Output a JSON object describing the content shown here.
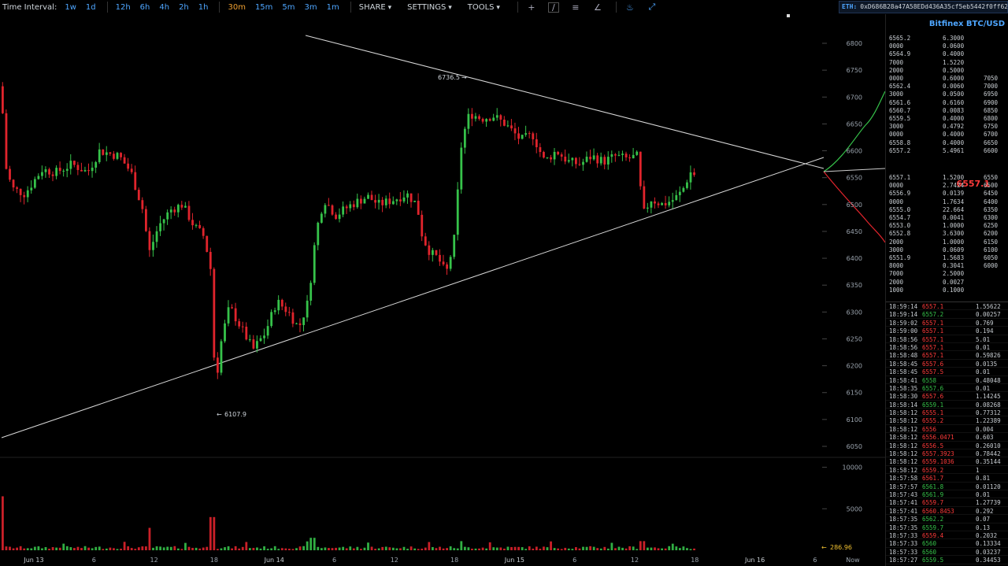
{
  "toolbar": {
    "time_interval_label": "Time Interval:",
    "intervals": [
      "1w",
      "1d",
      "12h",
      "6h",
      "4h",
      "2h",
      "1h",
      "30m",
      "15m",
      "5m",
      "3m",
      "1m"
    ],
    "active_interval": "30m",
    "share_label": "SHARE",
    "settings_label": "SETTINGS",
    "tools_label": "TOOLS",
    "eth_label": "ETH:",
    "eth_address": "0xD686B28a47A58EDd436A35cf5eb5442f0ff62"
  },
  "panel": {
    "pair_title": "Bitfinex BTC/USD",
    "last_price": "6557.1",
    "asks": [
      [
        "6565.2",
        "6.3000",
        ""
      ],
      [
        "0000",
        "0.0600",
        ""
      ],
      [
        "6564.9",
        "0.4000",
        ""
      ],
      [
        "7000",
        "1.5220",
        ""
      ],
      [
        "2000",
        "0.5000",
        ""
      ],
      [
        "0000",
        "0.6000",
        "7050"
      ],
      [
        "6562.4",
        "0.0060",
        "7000"
      ],
      [
        "3000",
        "0.0500",
        "6950"
      ],
      [
        "6561.6",
        "0.6160",
        "6900"
      ],
      [
        "6560.7",
        "0.0083",
        "6850"
      ],
      [
        "6559.5",
        "0.4000",
        "6800"
      ],
      [
        "3000",
        "0.4792",
        "6750"
      ],
      [
        "0000",
        "0.4000",
        "6700"
      ],
      [
        "6558.8",
        "0.4000",
        "6650"
      ],
      [
        "6557.2",
        "5.4961",
        "6600"
      ]
    ],
    "bids": [
      [
        "6557.1",
        "1.5200",
        "6550"
      ],
      [
        "0000",
        "2.7424",
        "6500"
      ],
      [
        "6556.9",
        "0.0139",
        "6450"
      ],
      [
        "0000",
        "1.7634",
        "6400"
      ],
      [
        "6555.0",
        "22.664",
        "6350"
      ],
      [
        "6554.7",
        "0.0041",
        "6300"
      ],
      [
        "6553.0",
        "1.0000",
        "6250"
      ],
      [
        "6552.8",
        "3.6300",
        "6200"
      ],
      [
        "2000",
        "1.0000",
        "6150"
      ],
      [
        "3000",
        "0.0609",
        "6100"
      ],
      [
        "6551.9",
        "1.5683",
        "6050"
      ],
      [
        "8000",
        "0.3041",
        "6000"
      ],
      [
        "7000",
        "2.5000",
        ""
      ],
      [
        "2000",
        "0.0027",
        ""
      ],
      [
        "1000",
        "0.1000",
        ""
      ]
    ],
    "trades": [
      [
        "18:59:14",
        "6557.1",
        "1.55622",
        "dn"
      ],
      [
        "18:59:14",
        "6557.2",
        "0.00257",
        "up"
      ],
      [
        "18:59:02",
        "6557.1",
        "0.769",
        "dn"
      ],
      [
        "18:59:00",
        "6557.1",
        "0.194",
        "dn"
      ],
      [
        "18:58:56",
        "6557.1",
        "5.01",
        "dn"
      ],
      [
        "18:58:56",
        "6557.1",
        "0.01",
        "dn"
      ],
      [
        "18:58:48",
        "6557.1",
        "0.59826",
        "dn"
      ],
      [
        "18:58:45",
        "6557.6",
        "0.0135",
        "dn"
      ],
      [
        "18:58:45",
        "6557.5",
        "0.01",
        "dn"
      ],
      [
        "18:58:41",
        "6558",
        "0.48048",
        "up"
      ],
      [
        "18:58:35",
        "6557.6",
        "0.01",
        "up"
      ],
      [
        "18:58:30",
        "6557.6",
        "1.14245",
        "dn"
      ],
      [
        "18:58:14",
        "6559.1",
        "0.08268",
        "up"
      ],
      [
        "18:58:12",
        "6555.1",
        "0.77312",
        "dn"
      ],
      [
        "18:58:12",
        "6555.2",
        "1.22389",
        "dn"
      ],
      [
        "18:58:12",
        "6556",
        "0.004",
        "dn"
      ],
      [
        "18:58:12",
        "6556.0471",
        "0.603",
        "dn"
      ],
      [
        "18:58:12",
        "6556.5",
        "0.26010",
        "dn"
      ],
      [
        "18:58:12",
        "6557.3923",
        "0.78442",
        "dn"
      ],
      [
        "18:58:12",
        "6559.1036",
        "0.35144",
        "dn"
      ],
      [
        "18:58:12",
        "6559.2",
        "1",
        "dn"
      ],
      [
        "18:57:58",
        "6561.7",
        "0.81",
        "dn"
      ],
      [
        "18:57:57",
        "6561.8",
        "0.01120",
        "up"
      ],
      [
        "18:57:43",
        "6561.9",
        "0.01",
        "up"
      ],
      [
        "18:57:41",
        "6559.7",
        "1.27739",
        "dn"
      ],
      [
        "18:57:41",
        "6560.8453",
        "0.292",
        "dn"
      ],
      [
        "18:57:35",
        "6562.2",
        "0.07",
        "up"
      ],
      [
        "18:57:35",
        "6559.7",
        "0.13",
        "up"
      ],
      [
        "18:57:33",
        "6559.4",
        "0.2032",
        "dn"
      ],
      [
        "18:57:33",
        "6560",
        "0.13334",
        "up"
      ],
      [
        "18:57:33",
        "6560",
        "0.03237",
        "up"
      ],
      [
        "18:57:27",
        "6559.5",
        "0.34453",
        "up"
      ]
    ]
  },
  "colors": {
    "accent": "#4ea6ff",
    "up": "#36c24a",
    "down": "#ff3b3b",
    "active": "#f0a030"
  },
  "chart_data": {
    "type": "candlestick",
    "price_axis_ticks": [
      "6800",
      "6750",
      "6700",
      "6650",
      "6600",
      "6550",
      "6500",
      "6450",
      "6400",
      "6350",
      "6300",
      "6250",
      "6200",
      "6150",
      "6100",
      "6050"
    ],
    "volume_axis_ticks": [
      "10000",
      "5000"
    ],
    "time_axis_ticks": [
      "Jun 13",
      "6",
      "12",
      "18",
      "Jun 14",
      "6",
      "12",
      "18",
      "Jun 15",
      "6",
      "12",
      "18",
      "Jun 16",
      "6",
      "Now"
    ],
    "annotations": {
      "high": "6736.5",
      "low": "6107.9",
      "current_volume": "286.96"
    },
    "ylim": [
      6040,
      6820
    ]
  }
}
